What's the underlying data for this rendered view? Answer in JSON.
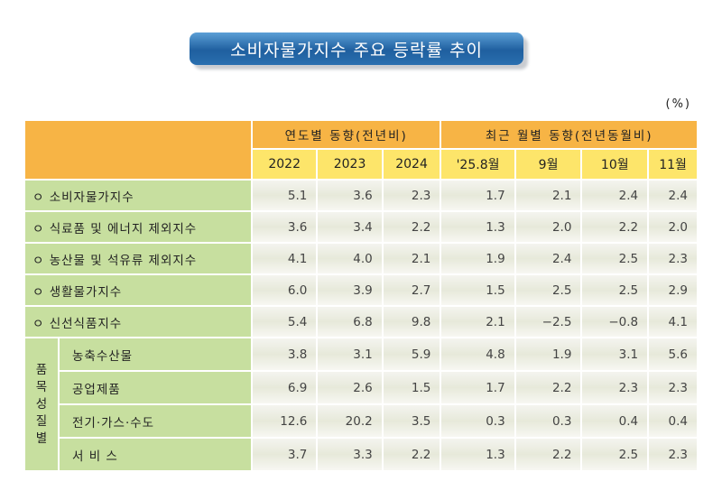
{
  "title": "소비자물가지수 주요 등락률 추이",
  "unit": "(%)",
  "header": {
    "annual": "연도별 동향(전년비)",
    "monthly": "최근 월별 동향(전년동월비)",
    "columns": [
      "2022",
      "2023",
      "2024",
      "'25.8월",
      "9월",
      "10월",
      "11월"
    ]
  },
  "rows": [
    {
      "label": "ㅇ 소비자물가지수",
      "values": [
        "5.1",
        "3.6",
        "2.3",
        "1.7",
        "2.1",
        "2.4",
        "2.4"
      ]
    },
    {
      "label": "ㅇ 식료품 및 에너지 제외지수",
      "values": [
        "3.6",
        "3.4",
        "2.2",
        "1.3",
        "2.0",
        "2.2",
        "2.0"
      ]
    },
    {
      "label": "ㅇ 농산물 및 석유류 제외지수",
      "values": [
        "4.1",
        "4.0",
        "2.1",
        "1.9",
        "2.4",
        "2.5",
        "2.3"
      ]
    },
    {
      "label": "ㅇ 생활물가지수",
      "values": [
        "6.0",
        "3.9",
        "2.7",
        "1.5",
        "2.5",
        "2.5",
        "2.9"
      ]
    },
    {
      "label": "ㅇ 신선식품지수",
      "values": [
        "5.4",
        "6.8",
        "9.8",
        "2.1",
        "−2.5",
        "−0.8",
        "4.1"
      ]
    }
  ],
  "group": {
    "label": "품\n목\n성\n질\n별",
    "rows": [
      {
        "label": "농축수산물",
        "values": [
          "3.8",
          "3.1",
          "5.9",
          "4.8",
          "1.9",
          "3.1",
          "5.6"
        ]
      },
      {
        "label": "공업제품",
        "values": [
          "6.9",
          "2.6",
          "1.5",
          "1.7",
          "2.2",
          "2.3",
          "2.3"
        ]
      },
      {
        "label": "전기·가스·수도",
        "values": [
          "12.6",
          "20.2",
          "3.5",
          "0.3",
          "0.3",
          "0.4",
          "0.4"
        ]
      },
      {
        "label": "서 비 스",
        "values": [
          "3.7",
          "3.3",
          "2.2",
          "1.3",
          "2.2",
          "2.5",
          "2.3"
        ]
      }
    ]
  }
}
